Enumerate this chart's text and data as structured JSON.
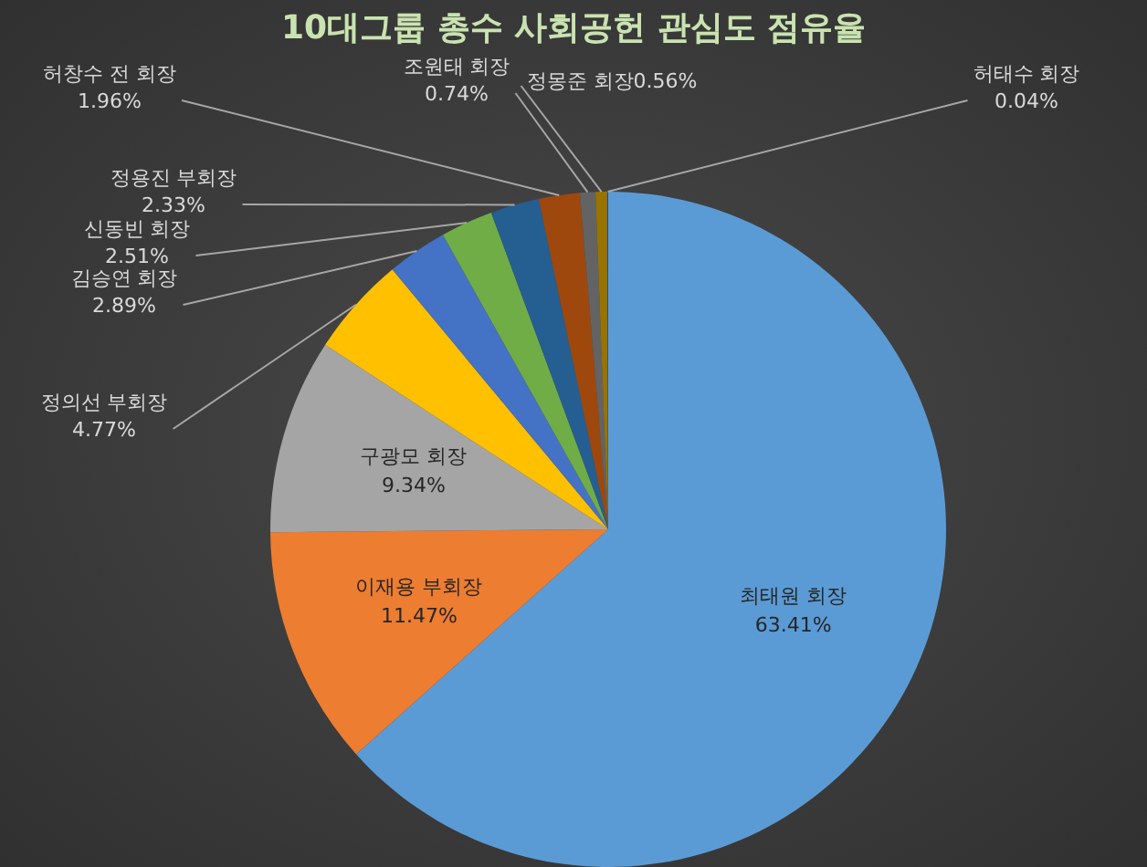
{
  "chart_data": {
    "type": "pie",
    "title": "10대그룹 총수 사회공헌 관심도 점유율",
    "categories": [
      "최태원 회장",
      "이재용 부회장",
      "구광모 회장",
      "정의선 부회장",
      "김승연 회장",
      "신동빈 회장",
      "정용진 부회장",
      "허창수 전 회장",
      "조원태 회장",
      "정몽준 회장",
      "허태수 회장"
    ],
    "values": [
      63.41,
      11.47,
      9.34,
      4.77,
      2.89,
      2.51,
      2.33,
      1.96,
      0.74,
      0.56,
      0.04
    ],
    "value_labels": [
      "63.41%",
      "11.47%",
      "9.34%",
      "4.77%",
      "2.89%",
      "2.51%",
      "2.33%",
      "1.96%",
      "0.74%",
      "0.56%",
      "0.04%"
    ],
    "colors": [
      "#5b9bd5",
      "#ed7d31",
      "#a5a5a5",
      "#ffc000",
      "#4472c4",
      "#70ad47",
      "#255e91",
      "#9e480e",
      "#636363",
      "#997300",
      "#264478"
    ],
    "legend": false
  }
}
